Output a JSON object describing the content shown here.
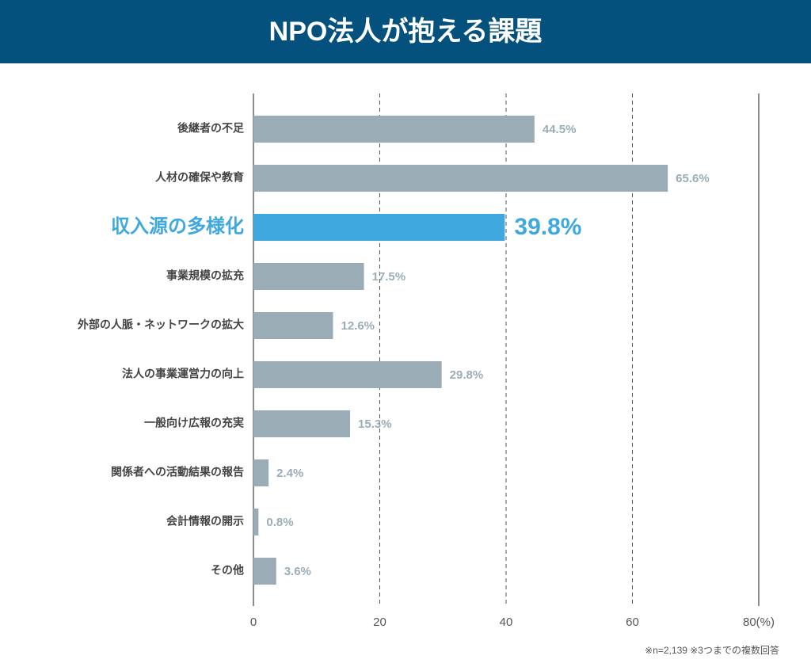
{
  "chart_data": {
    "type": "hbar",
    "title": "NPO法人が抱える課題",
    "categories": [
      "後継者の不足",
      "人材の確保や教育",
      "収入源の多様化",
      "事業規模の拡充",
      "外部の人脈・ネットワークの拡大",
      "法人の事業運営力の向上",
      "一般向け広報の充実",
      "関係者への活動結果の報告",
      "会計情報の開示",
      "その他"
    ],
    "values": [
      44.5,
      65.6,
      39.8,
      17.5,
      12.6,
      29.8,
      15.3,
      2.4,
      0.8,
      3.6
    ],
    "value_labels": [
      "44.5%",
      "65.6%",
      "39.8%",
      "17.5%",
      "12.6%",
      "29.8%",
      "15.3%",
      "2.4%",
      "0.8%",
      "3.6%"
    ],
    "color": "#9aadb7",
    "highlight": 2,
    "highlight_color": "#3fa8df",
    "xlim": [
      0,
      80
    ],
    "xticks": [
      0,
      20,
      40,
      60,
      {
        "value": 80,
        "label": "80(%)"
      }
    ],
    "grid": true,
    "note": "※n=2,139 ※3つまでの複数回答"
  }
}
